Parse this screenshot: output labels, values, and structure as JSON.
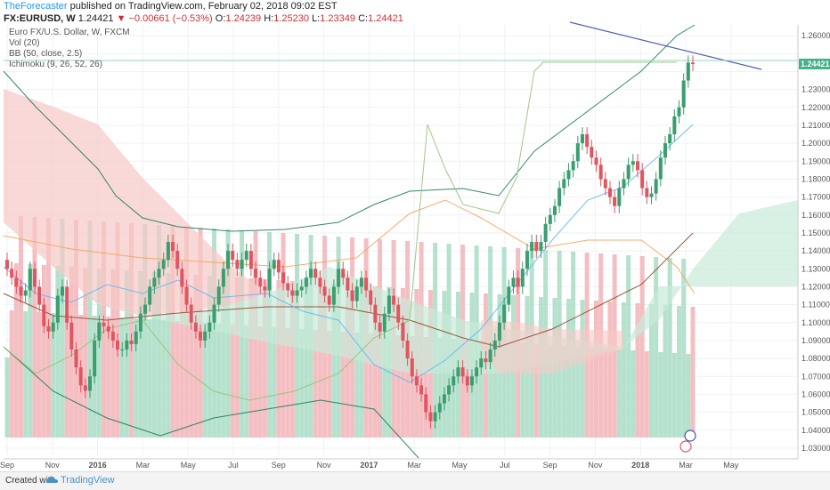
{
  "header": {
    "author": "TheForecaster",
    "published": "published on TradingView.com, February 02, 2018 09:02 EST",
    "symbol": "FX:EURUSD,",
    "timeframe": "W",
    "last": "1.24421",
    "change": "▼ −0.00661 (−0.53%)",
    "o_label": "O:",
    "o": "1.24239",
    "h_label": "H:",
    "h": "1.25230",
    "l_label": "L:",
    "l": "1.23349",
    "c_label": "C:",
    "c": "1.24421"
  },
  "indicators": [
    "Euro FX/U.S. Dollar, W, FXCM",
    "Vol (20)",
    "BB (50, close, 2.5)",
    "Ichimoku (9, 26, 52, 26)"
  ],
  "footer": {
    "created": "Created with",
    "brand": "TradingView"
  },
  "colors": {
    "up": "#3a9e6e",
    "down": "#e05560",
    "vol_up": "#a8dcc4",
    "vol_down": "#f2b4b8",
    "cloud_bull": "#c9ead9",
    "cloud_bear": "#f6c9c6",
    "bb": "#1f7a5a",
    "trend": "#3f51b5",
    "price_line": "#8ed0b6",
    "conversion": "#64b5f6",
    "base": "#8d4b2a",
    "lagging": "#9ac079",
    "bb_basis": "#f4a261",
    "lead_a": "#4caf50",
    "lead_b": "#e57373"
  },
  "chart_data": {
    "type": "candlestick",
    "title": "Euro FX/U.S. Dollar, W, FXCM",
    "x_ticks": [
      "Sep",
      "Nov",
      "2016",
      "Mar",
      "May",
      "Jul",
      "Sep",
      "Nov",
      "2017",
      "Mar",
      "May",
      "Jul",
      "Sep",
      "Nov",
      "2018",
      "Mar",
      "May"
    ],
    "y_ticks": [
      "1.26000",
      "1.25000",
      "1.24000",
      "1.23000",
      "1.22000",
      "1.21000",
      "1.20000",
      "1.19000",
      "1.18000",
      "1.17000",
      "1.16000",
      "1.15000",
      "1.14000",
      "1.13000",
      "1.12000",
      "1.11000",
      "1.10000",
      "1.09000",
      "1.08000",
      "1.07000",
      "1.06000",
      "1.05000",
      "1.04000",
      "1.03000"
    ],
    "ylim": [
      1.026,
      1.266
    ],
    "last_price": 1.24421,
    "last_price_label": "1.24421",
    "candles_close": [
      1.13,
      1.125,
      1.12,
      1.115,
      1.118,
      1.13,
      1.12,
      1.11,
      1.098,
      1.095,
      1.1,
      1.115,
      1.12,
      1.1,
      1.085,
      1.075,
      1.065,
      1.062,
      1.07,
      1.09,
      1.1,
      1.098,
      1.095,
      1.09,
      1.085,
      1.085,
      1.09,
      1.088,
      1.095,
      1.105,
      1.11,
      1.12,
      1.125,
      1.13,
      1.135,
      1.145,
      1.14,
      1.13,
      1.12,
      1.11,
      1.1,
      1.095,
      1.09,
      1.095,
      1.1,
      1.11,
      1.12,
      1.13,
      1.14,
      1.135,
      1.13,
      1.135,
      1.14,
      1.13,
      1.125,
      1.12,
      1.118,
      1.13,
      1.135,
      1.128,
      1.122,
      1.118,
      1.115,
      1.118,
      1.12,
      1.125,
      1.13,
      1.125,
      1.12,
      1.115,
      1.11,
      1.12,
      1.13,
      1.125,
      1.118,
      1.112,
      1.12,
      1.125,
      1.118,
      1.11,
      1.1,
      1.095,
      1.105,
      1.115,
      1.11,
      1.1,
      1.09,
      1.08,
      1.07,
      1.065,
      1.06,
      1.05,
      1.045,
      1.05,
      1.055,
      1.06,
      1.065,
      1.07,
      1.075,
      1.07,
      1.065,
      1.07,
      1.075,
      1.08,
      1.078,
      1.085,
      1.09,
      1.1,
      1.11,
      1.12,
      1.125,
      1.12,
      1.13,
      1.14,
      1.145,
      1.14,
      1.145,
      1.155,
      1.16,
      1.165,
      1.175,
      1.18,
      1.185,
      1.19,
      1.2,
      1.205,
      1.198,
      1.192,
      1.188,
      1.18,
      1.175,
      1.17,
      1.165,
      1.175,
      1.18,
      1.188,
      1.19,
      1.185,
      1.175,
      1.17,
      1.172,
      1.18,
      1.192,
      1.2,
      1.205,
      1.215,
      1.22,
      1.235,
      1.245,
      1.24421
    ]
  }
}
